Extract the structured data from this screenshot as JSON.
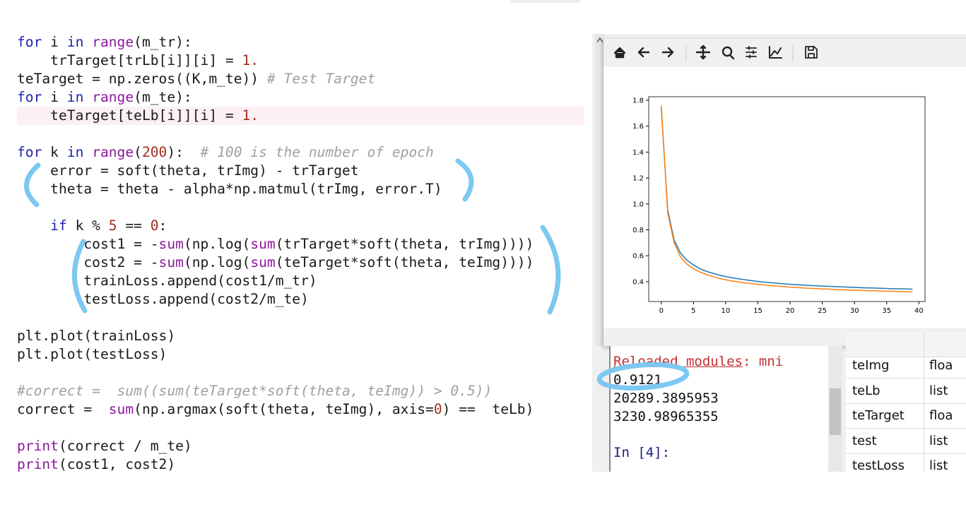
{
  "code": {
    "comment_color": "#a0a0a0",
    "highlight_color": "#fcf0f5",
    "highlighted_line": [
      0,
      4
    ],
    "blocks": [
      [
        [
          [
            "for",
            "#2020b0"
          ],
          [
            " i ",
            "#1a1a1a"
          ],
          [
            "in",
            "#2020b0"
          ],
          [
            " ",
            "#1a1a1a"
          ],
          [
            "range",
            "#8b1a9b"
          ],
          [
            "(m_tr):",
            "#1a1a1a"
          ]
        ],
        [
          [
            "    trTarget[trLb[i]][i] = ",
            "#1a1a1a"
          ],
          [
            "1.",
            "#a03020"
          ]
        ],
        [
          [
            "teTarget = np.zeros((K,m_te)) ",
            "#1a1a1a"
          ],
          [
            "# Test Target",
            "#a0a0a0"
          ]
        ],
        [
          [
            "for",
            "#2020b0"
          ],
          [
            " i ",
            "#1a1a1a"
          ],
          [
            "in",
            "#2020b0"
          ],
          [
            " ",
            "#1a1a1a"
          ],
          [
            "range",
            "#8b1a9b"
          ],
          [
            "(m_te):",
            "#1a1a1a"
          ]
        ],
        [
          [
            "    teTarget[teLb[i]][i] = ",
            "#1a1a1a"
          ],
          [
            "1.",
            "#a03020"
          ]
        ]
      ],
      [
        [
          [
            "for",
            "#2020b0"
          ],
          [
            " k ",
            "#1a1a1a"
          ],
          [
            "in",
            "#2020b0"
          ],
          [
            " ",
            "#1a1a1a"
          ],
          [
            "range",
            "#8b1a9b"
          ],
          [
            "(",
            "#1a1a1a"
          ],
          [
            "200",
            "#a03020"
          ],
          [
            "):  ",
            "#1a1a1a"
          ],
          [
            "# 100 is the number of epoch",
            "#a0a0a0"
          ]
        ],
        [
          [
            "    error = soft(theta, trImg) - trTarget",
            "#1a1a1a"
          ]
        ],
        [
          [
            "    theta = theta - alpha*np.matmul(trImg, error.T)",
            "#1a1a1a"
          ]
        ]
      ],
      [
        [
          [
            "    ",
            "#1a1a1a"
          ],
          [
            "if",
            "#2020b0"
          ],
          [
            " k % ",
            "#1a1a1a"
          ],
          [
            "5",
            "#a03020"
          ],
          [
            " == ",
            "#1a1a1a"
          ],
          [
            "0",
            "#a03020"
          ],
          [
            ":",
            "#1a1a1a"
          ]
        ],
        [
          [
            "        cost1 = -",
            "#1a1a1a"
          ],
          [
            "sum",
            "#8b1a9b"
          ],
          [
            "(np.log(",
            "#1a1a1a"
          ],
          [
            "sum",
            "#8b1a9b"
          ],
          [
            "(trTarget*soft(theta, trImg))))",
            "#1a1a1a"
          ]
        ],
        [
          [
            "        cost2 = -",
            "#1a1a1a"
          ],
          [
            "sum",
            "#8b1a9b"
          ],
          [
            "(np.log(",
            "#1a1a1a"
          ],
          [
            "sum",
            "#8b1a9b"
          ],
          [
            "(teTarget*soft(theta, teImg))))",
            "#1a1a1a"
          ]
        ],
        [
          [
            "        trainLoss.append(cost1/m_tr)",
            "#1a1a1a"
          ]
        ],
        [
          [
            "        testLoss.append(cost2/m_te)",
            "#1a1a1a"
          ]
        ]
      ],
      [
        [
          [
            "plt.plot(trainLoss)",
            "#1a1a1a"
          ]
        ],
        [
          [
            "plt.plot(testLoss)",
            "#1a1a1a"
          ]
        ]
      ],
      [
        [
          [
            "#correct =  sum((sum(teTarget*soft(theta, teImg)) > 0.5))",
            "#a0a0a0"
          ]
        ],
        [
          [
            "correct =  ",
            "#1a1a1a"
          ],
          [
            "sum",
            "#8b1a9b"
          ],
          [
            "(np.argmax(soft(theta, teImg), axis=",
            "#1a1a1a"
          ],
          [
            "0",
            "#a03020"
          ],
          [
            ") ==  teLb)",
            "#1a1a1a"
          ]
        ]
      ],
      [
        [
          [
            "print",
            "#8b1a9b"
          ],
          [
            "(correct / m_te)",
            "#1a1a1a"
          ]
        ],
        [
          [
            "print",
            "#8b1a9b"
          ],
          [
            "(cost1, cost2)",
            "#1a1a1a"
          ]
        ]
      ]
    ]
  },
  "chart_data": {
    "type": "line",
    "x": [
      0,
      1,
      2,
      3,
      4,
      5,
      6,
      7,
      8,
      9,
      10,
      11,
      12,
      13,
      14,
      15,
      16,
      17,
      18,
      19,
      20,
      21,
      22,
      23,
      24,
      25,
      26,
      27,
      28,
      29,
      30,
      31,
      32,
      33,
      34,
      35,
      36,
      37,
      38,
      39
    ],
    "series": [
      {
        "color": "#1f77b4",
        "values": [
          1.74,
          0.95,
          0.72,
          0.62,
          0.565,
          0.53,
          0.5,
          0.48,
          0.465,
          0.45,
          0.44,
          0.43,
          0.422,
          0.415,
          0.408,
          0.402,
          0.397,
          0.392,
          0.388,
          0.384,
          0.38,
          0.377,
          0.374,
          0.371,
          0.368,
          0.366,
          0.364,
          0.362,
          0.36,
          0.358,
          0.356,
          0.354,
          0.352,
          0.351,
          0.349,
          0.348,
          0.346,
          0.345,
          0.344,
          0.342
        ]
      },
      {
        "color": "#ff7f0e",
        "values": [
          1.76,
          0.93,
          0.7,
          0.59,
          0.535,
          0.5,
          0.475,
          0.455,
          0.44,
          0.425,
          0.415,
          0.405,
          0.398,
          0.391,
          0.385,
          0.379,
          0.374,
          0.37,
          0.366,
          0.362,
          0.358,
          0.355,
          0.352,
          0.349,
          0.347,
          0.344,
          0.342,
          0.34,
          0.338,
          0.336,
          0.334,
          0.333,
          0.331,
          0.33,
          0.328,
          0.327,
          0.326,
          0.324,
          0.323,
          0.322
        ]
      }
    ],
    "xlim": [
      -1.95,
      40.95
    ],
    "xticks": [
      0,
      5,
      10,
      15,
      20,
      25,
      30,
      35,
      40
    ],
    "ylim": [
      0.247,
      1.827
    ],
    "yticks": [
      0.4,
      0.6,
      0.8,
      {
        "value": 1,
        "label": "1.0"
      },
      1.2,
      1.4,
      1.6,
      1.8
    ]
  },
  "console": {
    "reloaded": "Reloaded modules",
    "reloaded_rest": ": mni",
    "outputs": [
      "0.9121",
      "20289.3895953",
      "3230.98965355"
    ],
    "prompt": "In [4]:"
  },
  "variables": [
    [
      "teImg",
      "floa"
    ],
    [
      "teLb",
      "list"
    ],
    [
      "teTarget",
      "floa"
    ],
    [
      "test",
      "list"
    ],
    [
      "testLoss",
      "list"
    ]
  ]
}
